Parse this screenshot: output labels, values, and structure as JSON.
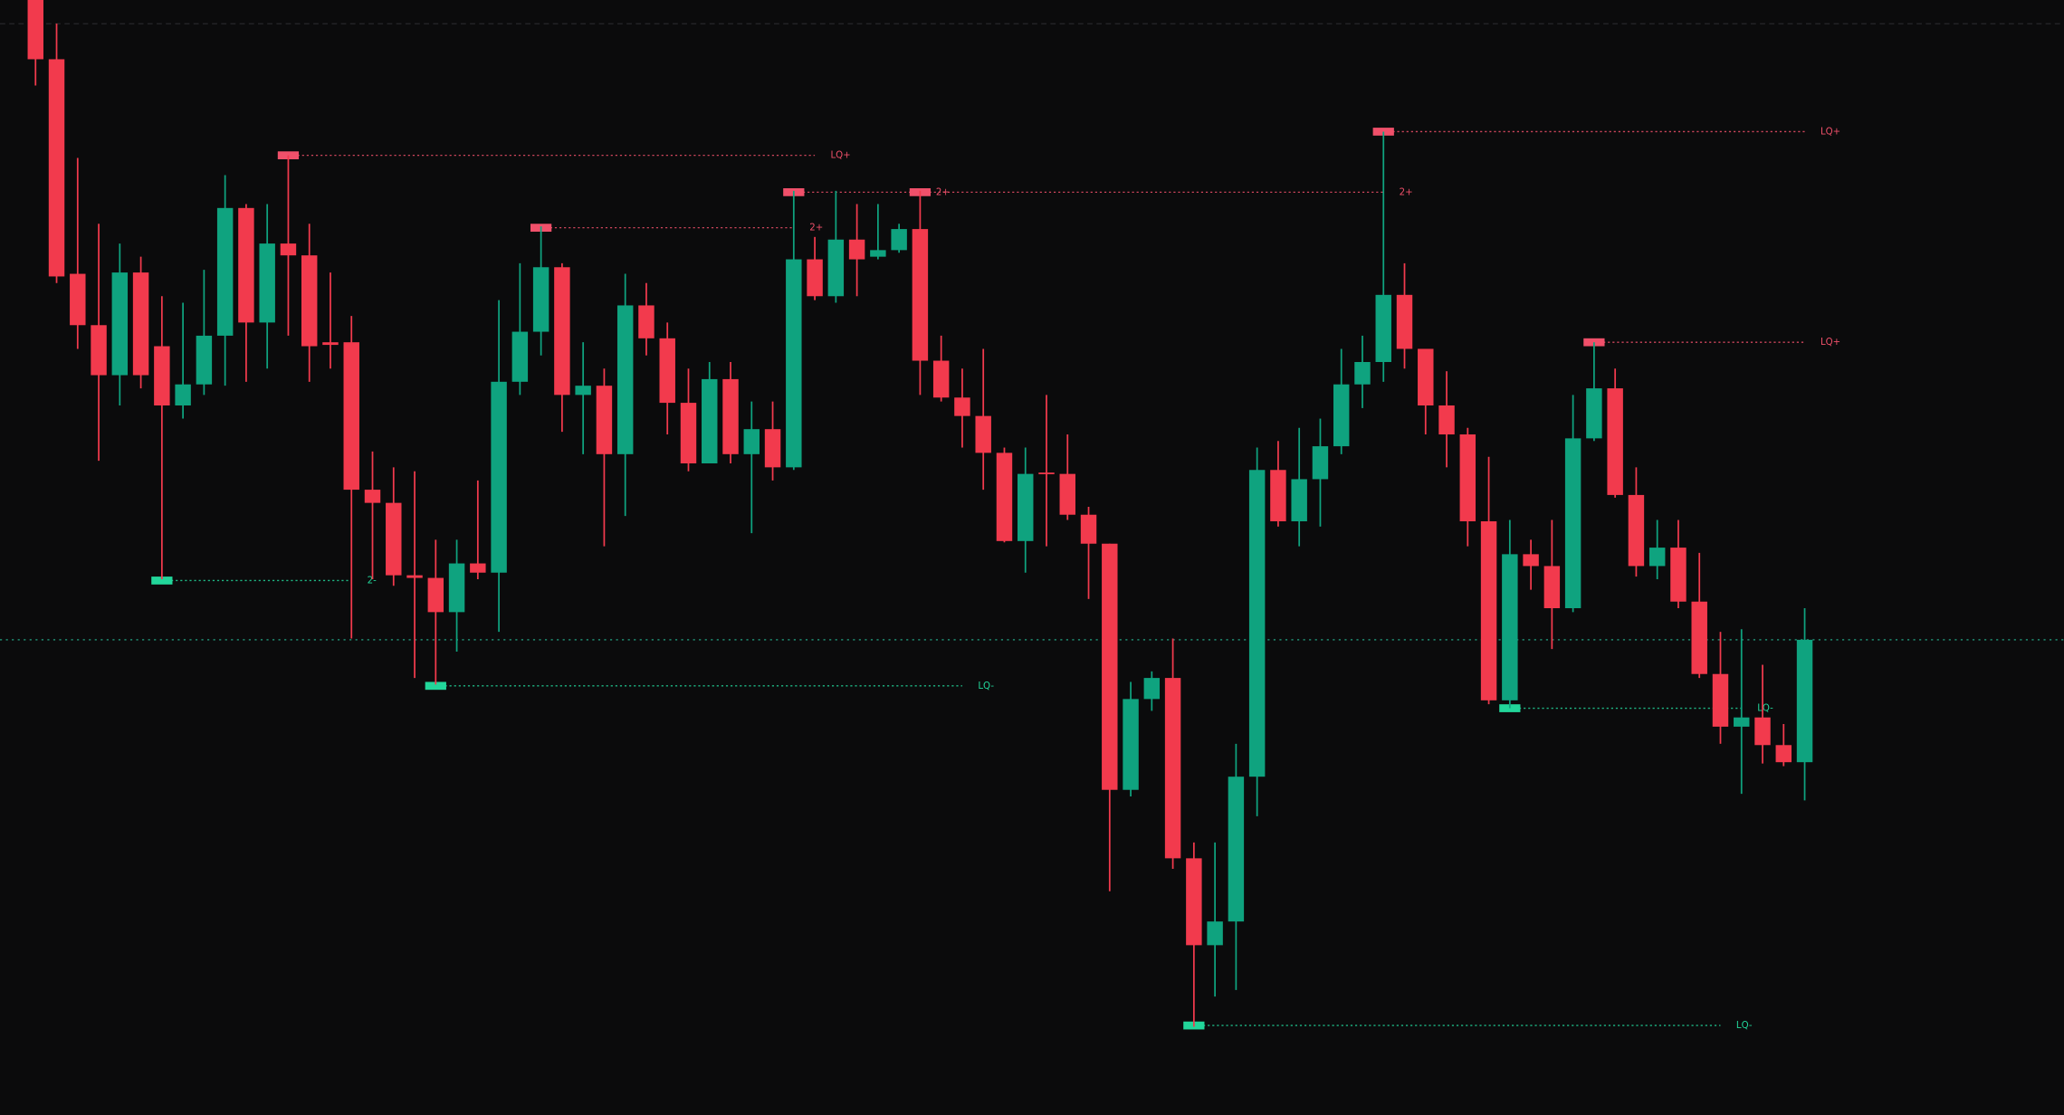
{
  "chart_data": {
    "type": "candlestick",
    "up_color": "#0fa37f",
    "down_color": "#f23a4d",
    "ylim": [
      0,
      847
    ],
    "open": [
      847,
      802,
      639,
      600,
      562,
      640,
      584,
      539,
      555,
      592,
      689,
      602,
      662,
      653,
      587,
      587,
      475,
      465,
      410,
      408,
      382,
      419,
      412,
      557,
      595,
      644,
      547,
      554,
      502,
      615,
      590,
      541,
      495,
      559,
      502,
      521,
      492,
      650,
      622,
      665,
      652,
      657,
      673,
      573,
      545,
      531,
      503,
      436,
      488,
      487,
      456,
      434,
      247,
      316,
      332,
      195,
      129,
      147,
      257,
      490,
      451,
      483,
      508,
      555,
      572,
      623,
      582,
      539,
      517,
      451,
      315,
      426,
      417,
      385,
      514,
      552,
      471,
      417,
      431,
      390,
      335,
      295,
      302,
      281,
      268
    ],
    "high": [
      847,
      829,
      727,
      677,
      662,
      652,
      622,
      617,
      642,
      714,
      692,
      692,
      729,
      677,
      640,
      607,
      504,
      492,
      489,
      437,
      437,
      482,
      619,
      647,
      675,
      647,
      587,
      567,
      639,
      632,
      602,
      567,
      572,
      572,
      542,
      542,
      702,
      667,
      702,
      692,
      692,
      677,
      702,
      592,
      567,
      582,
      507,
      507,
      547,
      517,
      462,
      434,
      329,
      337,
      362,
      207,
      207,
      282,
      507,
      512,
      522,
      529,
      582,
      592,
      747,
      647,
      582,
      565,
      522,
      500,
      452,
      437,
      452,
      547,
      587,
      567,
      492,
      452,
      452,
      427,
      367,
      369,
      342,
      297,
      385
    ],
    "low": [
      782,
      632,
      582,
      497,
      539,
      552,
      407,
      529,
      547,
      554,
      557,
      567,
      592,
      557,
      567,
      362,
      407,
      402,
      332,
      327,
      352,
      407,
      367,
      547,
      577,
      519,
      502,
      432,
      455,
      577,
      517,
      489,
      495,
      495,
      442,
      482,
      490,
      619,
      617,
      622,
      650,
      655,
      547,
      542,
      507,
      475,
      435,
      412,
      432,
      452,
      392,
      170,
      242,
      307,
      187,
      67,
      90,
      95,
      227,
      447,
      432,
      447,
      502,
      537,
      557,
      567,
      517,
      492,
      432,
      312,
      309,
      399,
      354,
      382,
      512,
      469,
      409,
      407,
      385,
      332,
      282,
      244,
      267,
      265,
      239
    ],
    "close": [
      802,
      637,
      600,
      562,
      640,
      562,
      539,
      555,
      592,
      689,
      602,
      662,
      653,
      584,
      585,
      475,
      465,
      410,
      408,
      382,
      419,
      412,
      557,
      595,
      644,
      547,
      554,
      502,
      615,
      590,
      541,
      495,
      559,
      502,
      521,
      492,
      650,
      622,
      665,
      650,
      657,
      673,
      573,
      545,
      531,
      503,
      436,
      487,
      487,
      456,
      434,
      247,
      316,
      332,
      195,
      129,
      147,
      257,
      490,
      451,
      483,
      508,
      555,
      572,
      623,
      582,
      539,
      517,
      451,
      315,
      426,
      417,
      385,
      514,
      552,
      471,
      417,
      431,
      390,
      335,
      295,
      302,
      281,
      268,
      361
    ],
    "last_price": 361,
    "last_price_color": "#1f8a70",
    "levels": [
      {
        "value": 729,
        "from": 12,
        "to": 37,
        "label": "LQ+",
        "color": "#f0506a"
      },
      {
        "value": 674,
        "from": 24,
        "to": 36,
        "label": "2+",
        "color": "#f0506a"
      },
      {
        "value": 701,
        "from": 36,
        "to": 42,
        "label": "2+",
        "color": "#f0506a"
      },
      {
        "value": 701,
        "from": 42,
        "to": 64,
        "label": "2+",
        "color": "#f0506a"
      },
      {
        "value": 747,
        "from": 64,
        "to": 84,
        "label": "LQ+",
        "color": "#f0506a"
      },
      {
        "value": 587,
        "from": 74,
        "to": 84,
        "label": "LQ+",
        "color": "#f0506a"
      },
      {
        "value": 406,
        "from": 6,
        "to": 15,
        "label": "2-",
        "color": "#22d69a"
      },
      {
        "value": 326,
        "from": 19,
        "to": 44,
        "label": "LQ-",
        "color": "#22d69a"
      },
      {
        "value": 68,
        "from": 55,
        "to": 80,
        "label": "LQ-",
        "color": "#22d69a"
      },
      {
        "value": 309,
        "from": 70,
        "to": 81,
        "label": "LQ-",
        "color": "#22d69a"
      }
    ]
  }
}
